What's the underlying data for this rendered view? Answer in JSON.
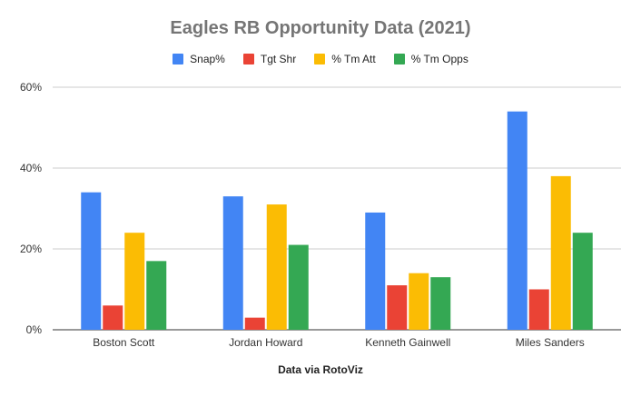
{
  "chart_data": {
    "type": "bar",
    "title": "Eagles RB Opportunity Data (2021)",
    "xlabel": "Data via RotoViz",
    "ylabel": "",
    "categories": [
      "Boston Scott",
      "Jordan Howard",
      "Kenneth Gainwell",
      "Miles Sanders"
    ],
    "series": [
      {
        "name": "Snap%",
        "color": "#4285F4",
        "values": [
          0.34,
          0.33,
          0.29,
          0.54
        ]
      },
      {
        "name": "Tgt Shr",
        "color": "#EA4335",
        "values": [
          0.06,
          0.03,
          0.11,
          0.1
        ]
      },
      {
        "name": "% Tm Att",
        "color": "#FBBC04",
        "values": [
          0.24,
          0.31,
          0.14,
          0.38
        ]
      },
      {
        "name": "% Tm Opps",
        "color": "#34A853",
        "values": [
          0.17,
          0.21,
          0.13,
          0.24
        ]
      }
    ],
    "ylim": [
      0,
      0.6
    ],
    "yticks": [
      {
        "value": 0,
        "label": "0%"
      },
      {
        "value": 0.2,
        "label": "20%"
      },
      {
        "value": 0.4,
        "label": "40%"
      },
      {
        "value": 0.6,
        "label": "60%"
      }
    ],
    "grid": true,
    "legend_position": "top"
  }
}
